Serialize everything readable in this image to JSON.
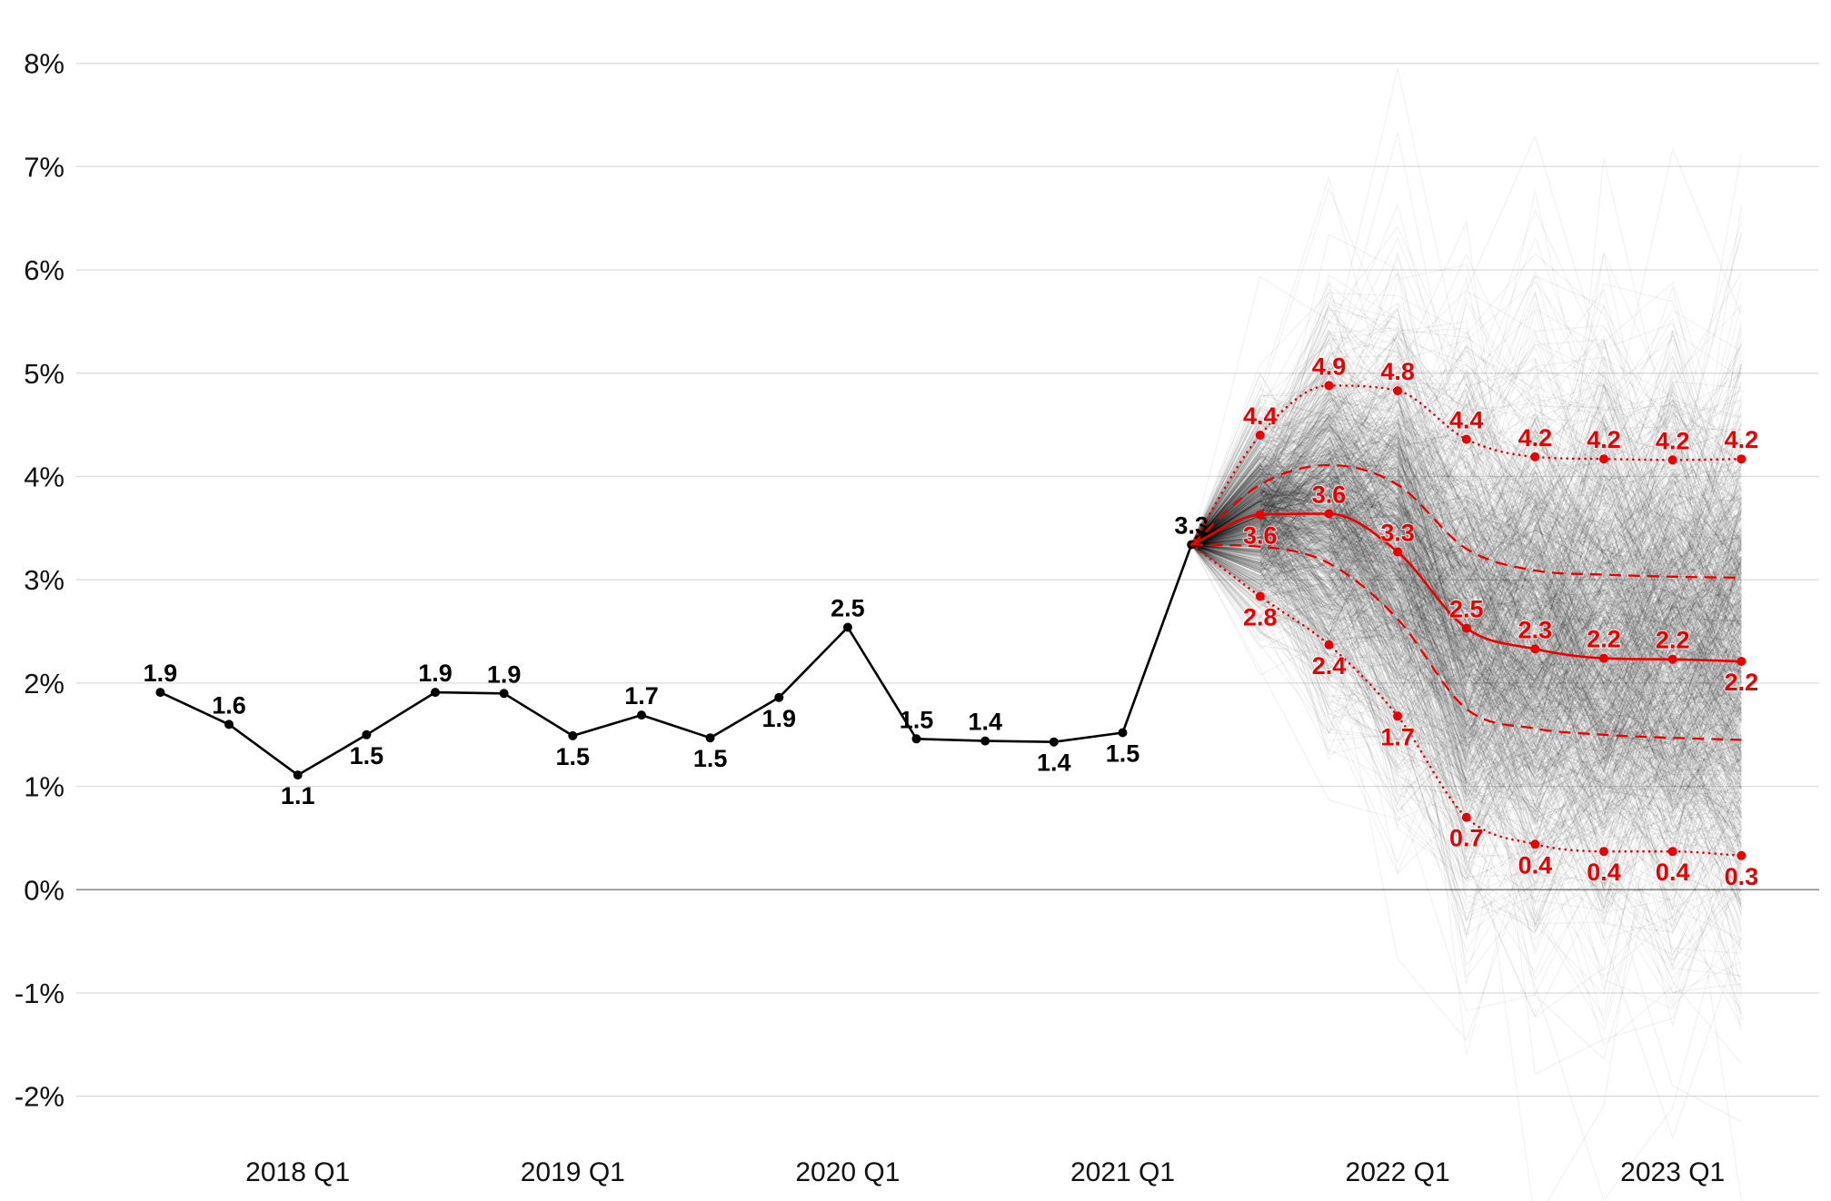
{
  "chart_data": {
    "type": "line",
    "ylim": [
      -2,
      8
    ],
    "grid": true,
    "y_ticks": [
      8,
      7,
      6,
      5,
      4,
      3,
      2,
      1,
      0,
      -1,
      -2
    ],
    "y_tick_labels": [
      "8%",
      "7%",
      "6%",
      "5%",
      "4%",
      "3%",
      "2%",
      "1%",
      "0%",
      "-1%",
      "-2%"
    ],
    "x_tick_labels": [
      "2018 Q1",
      "2019 Q1",
      "2020 Q1",
      "2021 Q1",
      "2022 Q1",
      "2023 Q1"
    ],
    "series": [
      {
        "color": "#000000",
        "line_style": "solid",
        "curve": "straight",
        "markers": true,
        "x": [
          "2017 Q3",
          "2017 Q4",
          "2018 Q1",
          "2018 Q2",
          "2018 Q3",
          "2018 Q4",
          "2019 Q1",
          "2019 Q2",
          "2019 Q3",
          "2019 Q4",
          "2020 Q1",
          "2020 Q2",
          "2020 Q3",
          "2020 Q4",
          "2021 Q1",
          "2021 Q2"
        ],
        "values": [
          1.91,
          1.6,
          1.11,
          1.5,
          1.91,
          1.9,
          1.49,
          1.69,
          1.47,
          1.86,
          2.54,
          1.46,
          1.44,
          1.43,
          1.52,
          3.34
        ],
        "labels": [
          "1.9",
          "1.6",
          "1.1",
          "1.5",
          "1.9",
          "1.9",
          "1.5",
          "1.7",
          "1.5",
          "1.9",
          "2.5",
          "1.5",
          "1.4",
          "1.4",
          "1.5",
          "3.3"
        ],
        "label_side": [
          "above",
          "above",
          "below",
          "below",
          "above",
          "above",
          "below",
          "above",
          "below",
          "below",
          "above",
          "above",
          "above",
          "below",
          "below",
          "above"
        ]
      },
      {
        "color": "#eb0000",
        "line_style": "solid",
        "curve": "smooth",
        "markers": true,
        "x": [
          "2021 Q2",
          "2021 Q3",
          "2021 Q4",
          "2022 Q1",
          "2022 Q2",
          "2022 Q3",
          "2022 Q4",
          "2023 Q1",
          "2023 Q2"
        ],
        "values": [
          3.34,
          3.63,
          3.64,
          3.27,
          2.53,
          2.33,
          2.24,
          2.23,
          2.21
        ],
        "labels": [
          "",
          "3.6",
          "3.6",
          "3.3",
          "2.5",
          "2.3",
          "2.2",
          "2.2",
          "2.2"
        ],
        "label_side": [
          "",
          "below",
          "above",
          "above",
          "above",
          "above",
          "above",
          "above",
          "below"
        ]
      },
      {
        "color": "#eb0000",
        "line_style": "dotted",
        "curve": "smooth",
        "markers": true,
        "x": [
          "2021 Q2",
          "2021 Q3",
          "2021 Q4",
          "2022 Q1",
          "2022 Q2",
          "2022 Q3",
          "2022 Q4",
          "2023 Q1",
          "2023 Q2"
        ],
        "values": [
          3.34,
          4.4,
          4.88,
          4.83,
          4.36,
          4.19,
          4.17,
          4.16,
          4.17
        ],
        "labels": [
          "",
          "4.4",
          "4.9",
          "4.8",
          "4.4",
          "4.2",
          "4.2",
          "4.2",
          "4.2"
        ],
        "label_side": [
          "",
          "above",
          "above",
          "above",
          "above",
          "above",
          "above",
          "above",
          "above"
        ]
      },
      {
        "color": "#eb0000",
        "line_style": "dotted",
        "curve": "smooth",
        "markers": true,
        "x": [
          "2021 Q2",
          "2021 Q3",
          "2021 Q4",
          "2022 Q1",
          "2022 Q2",
          "2022 Q3",
          "2022 Q4",
          "2023 Q1",
          "2023 Q2"
        ],
        "values": [
          3.34,
          2.84,
          2.37,
          1.68,
          0.7,
          0.44,
          0.37,
          0.37,
          0.33
        ],
        "labels": [
          "",
          "2.8",
          "2.4",
          "1.7",
          "0.7",
          "0.4",
          "0.4",
          "0.4",
          "0.3"
        ],
        "label_side": [
          "",
          "below",
          "below",
          "below",
          "below",
          "below",
          "below",
          "below",
          "below"
        ]
      },
      {
        "color": "#eb0000",
        "line_style": "dashed",
        "curve": "smooth",
        "markers": false,
        "x": [
          "2021 Q2",
          "2021 Q3",
          "2021 Q4",
          "2022 Q1",
          "2022 Q2",
          "2022 Q3",
          "2022 Q4",
          "2023 Q1",
          "2023 Q2"
        ],
        "values": [
          3.34,
          3.92,
          4.11,
          3.92,
          3.3,
          3.09,
          3.05,
          3.03,
          3.02
        ]
      },
      {
        "color": "#eb0000",
        "line_style": "dashed",
        "curve": "smooth",
        "markers": false,
        "x": [
          "2021 Q2",
          "2021 Q3",
          "2021 Q4",
          "2022 Q1",
          "2022 Q2",
          "2022 Q3",
          "2022 Q4",
          "2023 Q1",
          "2023 Q2"
        ],
        "values": [
          3.34,
          3.32,
          3.16,
          2.62,
          1.75,
          1.56,
          1.5,
          1.47,
          1.45
        ]
      }
    ]
  }
}
